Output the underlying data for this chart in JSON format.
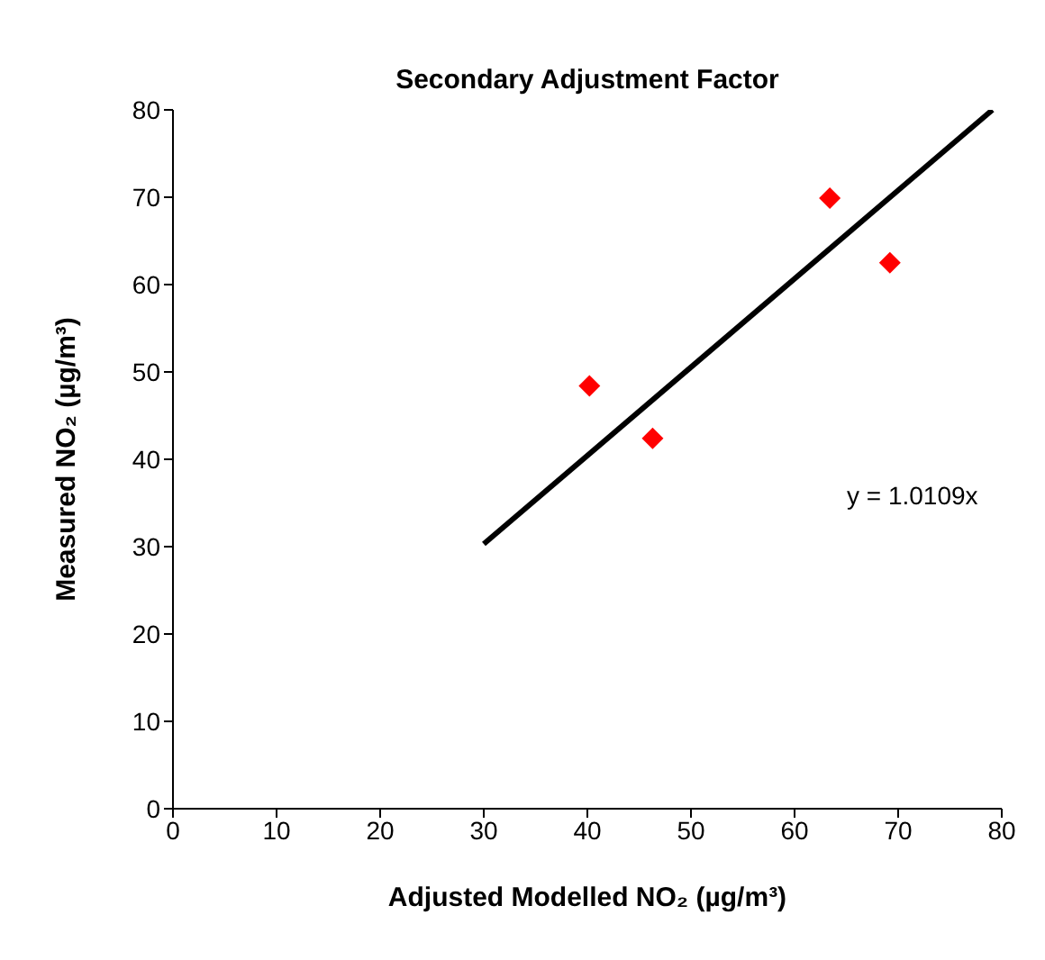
{
  "chart_data": {
    "type": "scatter",
    "title": "Secondary Adjustment Factor",
    "xlabel": "Adjusted Modelled NO₂ (µg/m³)",
    "ylabel": "Measured NO₂ (µg/m³)",
    "annotations": [
      "y = 1.0109x"
    ],
    "xlim": [
      0,
      80
    ],
    "xticks": [
      0,
      10,
      20,
      30,
      40,
      50,
      60,
      70,
      80
    ],
    "ylim": [
      0,
      80
    ],
    "yticks": [
      0,
      10,
      20,
      30,
      40,
      50,
      60,
      70,
      80
    ],
    "grid": false,
    "marker": "diamond",
    "series": [
      {
        "color": "#ff0000",
        "x": [
          40.2,
          46.3,
          63.4,
          69.2
        ],
        "values": [
          48.4,
          42.4,
          69.9,
          62.5
        ]
      },
      {
        "type": "line",
        "color": "#000000",
        "x": [
          30,
          79.1
        ],
        "values": [
          30.3,
          80
        ],
        "marker": "none",
        "line_style": "solid"
      }
    ]
  }
}
